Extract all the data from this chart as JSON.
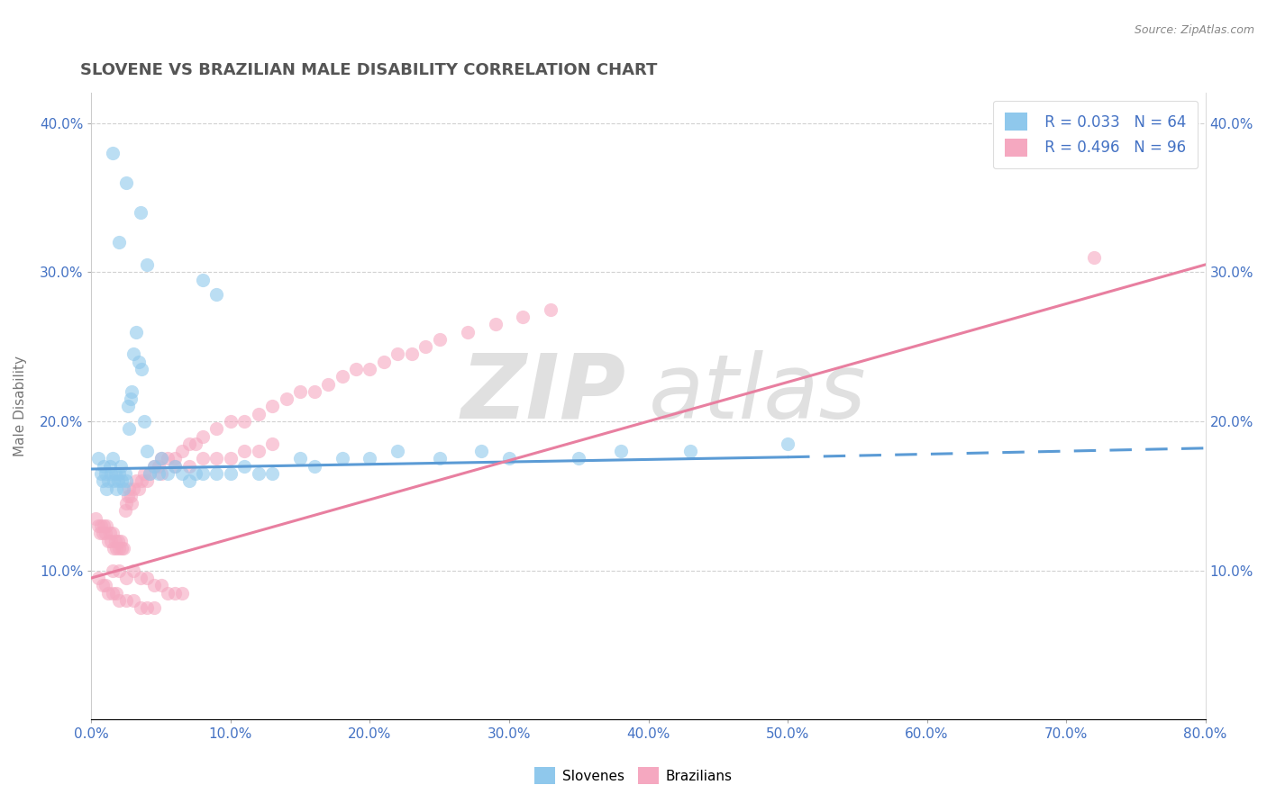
{
  "title": "SLOVENE VS BRAZILIAN MALE DISABILITY CORRELATION CHART",
  "source_text": "Source: ZipAtlas.com",
  "ylabel": "Male Disability",
  "xlim": [
    0.0,
    0.8
  ],
  "ylim": [
    0.0,
    0.42
  ],
  "xtick_labels": [
    "0.0%",
    "10.0%",
    "20.0%",
    "30.0%",
    "40.0%",
    "50.0%",
    "60.0%",
    "70.0%",
    "80.0%"
  ],
  "xtick_vals": [
    0.0,
    0.1,
    0.2,
    0.3,
    0.4,
    0.5,
    0.6,
    0.7,
    0.8
  ],
  "ytick_labels": [
    "10.0%",
    "20.0%",
    "30.0%",
    "40.0%"
  ],
  "ytick_vals": [
    0.1,
    0.2,
    0.3,
    0.4
  ],
  "slovene_color": "#8FC8EC",
  "brazilian_color": "#F5A8C0",
  "slovene_line_color": "#5B9BD5",
  "brazilian_line_color": "#E87FA0",
  "slovene_R": 0.033,
  "slovene_N": 64,
  "brazilian_R": 0.496,
  "brazilian_N": 96,
  "background_color": "#FFFFFF",
  "grid_color": "#CCCCCC",
  "watermark_zip": "ZIP",
  "watermark_atlas": "atlas",
  "watermark_color": "#E0E0E0",
  "legend_R_color": "#4472C4",
  "title_color": "#555555",
  "slovene_scatter_x": [
    0.005,
    0.007,
    0.008,
    0.009,
    0.01,
    0.011,
    0.012,
    0.013,
    0.014,
    0.015,
    0.016,
    0.017,
    0.018,
    0.019,
    0.02,
    0.021,
    0.022,
    0.023,
    0.024,
    0.025,
    0.026,
    0.027,
    0.028,
    0.029,
    0.03,
    0.032,
    0.034,
    0.036,
    0.038,
    0.04,
    0.042,
    0.045,
    0.048,
    0.05,
    0.055,
    0.06,
    0.065,
    0.07,
    0.075,
    0.08,
    0.09,
    0.1,
    0.11,
    0.12,
    0.13,
    0.15,
    0.16,
    0.18,
    0.2,
    0.22,
    0.25,
    0.28,
    0.3,
    0.35,
    0.38,
    0.43,
    0.5,
    0.015,
    0.025,
    0.035,
    0.02,
    0.04,
    0.08,
    0.09
  ],
  "slovene_scatter_y": [
    0.175,
    0.165,
    0.16,
    0.17,
    0.165,
    0.155,
    0.16,
    0.17,
    0.165,
    0.175,
    0.16,
    0.165,
    0.155,
    0.16,
    0.165,
    0.17,
    0.16,
    0.155,
    0.165,
    0.16,
    0.21,
    0.195,
    0.215,
    0.22,
    0.245,
    0.26,
    0.24,
    0.235,
    0.2,
    0.18,
    0.165,
    0.17,
    0.165,
    0.175,
    0.165,
    0.17,
    0.165,
    0.16,
    0.165,
    0.165,
    0.165,
    0.165,
    0.17,
    0.165,
    0.165,
    0.175,
    0.17,
    0.175,
    0.175,
    0.18,
    0.175,
    0.18,
    0.175,
    0.175,
    0.18,
    0.18,
    0.185,
    0.38,
    0.36,
    0.34,
    0.32,
    0.305,
    0.295,
    0.285
  ],
  "brazilian_scatter_x": [
    0.003,
    0.005,
    0.006,
    0.007,
    0.008,
    0.009,
    0.01,
    0.011,
    0.012,
    0.013,
    0.014,
    0.015,
    0.016,
    0.017,
    0.018,
    0.019,
    0.02,
    0.021,
    0.022,
    0.023,
    0.024,
    0.025,
    0.026,
    0.027,
    0.028,
    0.029,
    0.03,
    0.032,
    0.034,
    0.036,
    0.038,
    0.04,
    0.042,
    0.045,
    0.048,
    0.05,
    0.055,
    0.06,
    0.065,
    0.07,
    0.075,
    0.08,
    0.09,
    0.1,
    0.11,
    0.12,
    0.13,
    0.14,
    0.15,
    0.16,
    0.17,
    0.18,
    0.19,
    0.2,
    0.21,
    0.22,
    0.23,
    0.24,
    0.25,
    0.27,
    0.29,
    0.31,
    0.33,
    0.05,
    0.06,
    0.07,
    0.08,
    0.09,
    0.1,
    0.11,
    0.12,
    0.13,
    0.005,
    0.008,
    0.01,
    0.012,
    0.015,
    0.018,
    0.02,
    0.025,
    0.03,
    0.035,
    0.04,
    0.045,
    0.72,
    0.015,
    0.02,
    0.025,
    0.03,
    0.035,
    0.04,
    0.045,
    0.05,
    0.055,
    0.06,
    0.065
  ],
  "brazilian_scatter_y": [
    0.135,
    0.13,
    0.125,
    0.13,
    0.125,
    0.13,
    0.125,
    0.13,
    0.12,
    0.125,
    0.12,
    0.125,
    0.115,
    0.12,
    0.115,
    0.12,
    0.115,
    0.12,
    0.115,
    0.115,
    0.14,
    0.145,
    0.15,
    0.155,
    0.15,
    0.145,
    0.155,
    0.16,
    0.155,
    0.16,
    0.165,
    0.16,
    0.165,
    0.17,
    0.17,
    0.175,
    0.175,
    0.175,
    0.18,
    0.185,
    0.185,
    0.19,
    0.195,
    0.2,
    0.2,
    0.205,
    0.21,
    0.215,
    0.22,
    0.22,
    0.225,
    0.23,
    0.235,
    0.235,
    0.24,
    0.245,
    0.245,
    0.25,
    0.255,
    0.26,
    0.265,
    0.27,
    0.275,
    0.165,
    0.17,
    0.17,
    0.175,
    0.175,
    0.175,
    0.18,
    0.18,
    0.185,
    0.095,
    0.09,
    0.09,
    0.085,
    0.085,
    0.085,
    0.08,
    0.08,
    0.08,
    0.075,
    0.075,
    0.075,
    0.31,
    0.1,
    0.1,
    0.095,
    0.1,
    0.095,
    0.095,
    0.09,
    0.09,
    0.085,
    0.085,
    0.085
  ],
  "slovene_line_x0": 0.0,
  "slovene_line_x_solid_end": 0.5,
  "slovene_line_x1": 0.8,
  "slovene_line_y0": 0.168,
  "slovene_line_y_solid_end": 0.176,
  "slovene_line_y1": 0.182,
  "brazilian_line_x0": 0.0,
  "brazilian_line_x1": 0.8,
  "brazilian_line_y0": 0.095,
  "brazilian_line_y1": 0.305
}
